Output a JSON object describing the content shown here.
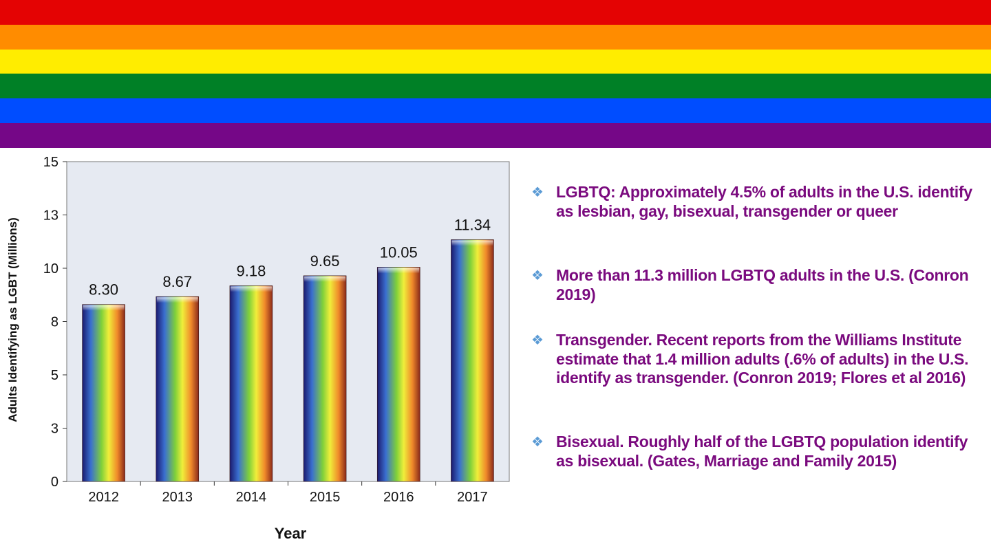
{
  "banner": {
    "colors": [
      "#e40303",
      "#ff8c00",
      "#ffed00",
      "#008026",
      "#004dff",
      "#750787"
    ]
  },
  "chart_data": {
    "type": "bar",
    "categories": [
      "2012",
      "2013",
      "2014",
      "2015",
      "2016",
      "2017"
    ],
    "values": [
      8.3,
      8.67,
      9.18,
      9.65,
      10.05,
      11.34
    ],
    "data_labels": [
      "8.30",
      "8.67",
      "9.18",
      "9.65",
      "10.05",
      "11.34"
    ],
    "xlabel": "Year",
    "ylabel": "Adults Identifying as LGBT (Millions)",
    "ylim": [
      0,
      15
    ],
    "yticks": [
      0,
      2.5,
      5,
      7.5,
      10,
      12.5,
      15
    ],
    "ytick_labels": [
      "0",
      "3",
      "5",
      "8",
      "10",
      "13",
      "15"
    ],
    "grid": false,
    "plot_background": "#e6eaf2",
    "bar_fill": "rainbow gradient"
  },
  "bullets": {
    "icon": "four-diamond-bullet-icon",
    "color": "#7a0a7e",
    "items": [
      "LGBTQ: Approximately 4.5% of adults in the U.S. identify as lesbian, gay, bisexual, transgender or queer",
      "More than 11.3 million LGBTQ adults in the U.S. (Conron 2019)",
      "Transgender. Recent reports from the Williams Institute estimate that 1.4 million adults (.6% of adults) in the U.S. identify as transgender. (Conron 2019; Flores et al 2016)",
      "Bisexual. Roughly half of the LGBTQ population identify as bisexual. (Gates, Marriage and Family 2015)"
    ]
  }
}
